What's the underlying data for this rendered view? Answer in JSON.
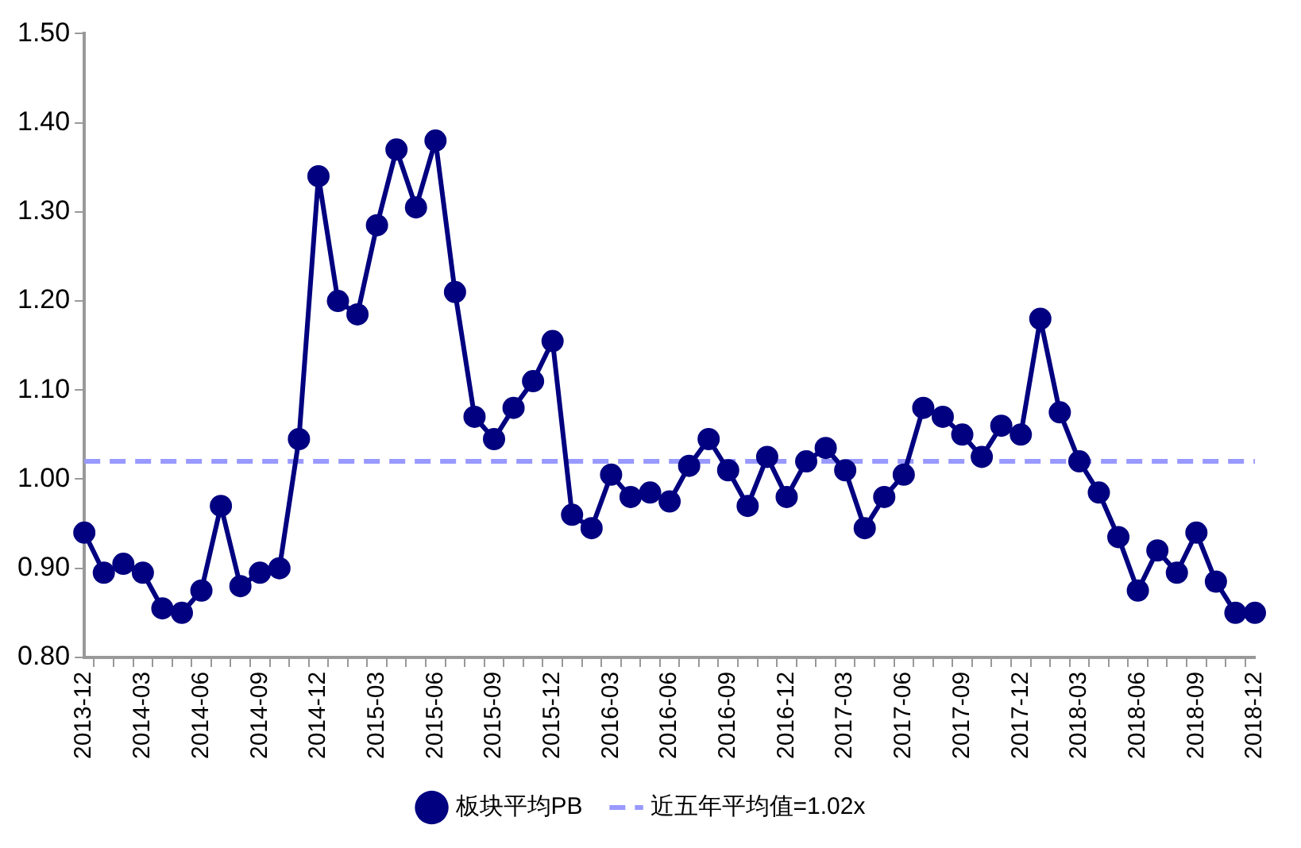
{
  "chart_data": {
    "type": "line",
    "categories": [
      "2013-12",
      null,
      null,
      "2014-03",
      null,
      null,
      "2014-06",
      null,
      null,
      "2014-09",
      null,
      null,
      "2014-12",
      null,
      null,
      "2015-03",
      null,
      null,
      "2015-06",
      null,
      null,
      "2015-09",
      null,
      null,
      "2015-12",
      null,
      null,
      "2016-03",
      null,
      null,
      "2016-06",
      null,
      null,
      "2016-09",
      null,
      null,
      "2016-12",
      null,
      null,
      "2017-03",
      null,
      null,
      "2017-06",
      null,
      null,
      "2017-09",
      null,
      null,
      "2017-12",
      null,
      null,
      "2018-03",
      null,
      null,
      "2018-06",
      null,
      null,
      "2018-09",
      null,
      null,
      "2018-12"
    ],
    "series": [
      {
        "name": "板块平均PB",
        "color": "#000080",
        "values": [
          0.94,
          0.895,
          0.905,
          0.895,
          0.855,
          0.85,
          0.875,
          0.97,
          0.88,
          0.895,
          0.9,
          1.045,
          1.34,
          1.2,
          1.185,
          1.285,
          1.37,
          1.305,
          1.38,
          1.21,
          1.07,
          1.045,
          1.08,
          1.11,
          1.155,
          0.96,
          0.945,
          1.005,
          0.98,
          0.985,
          0.975,
          1.015,
          1.045,
          1.01,
          0.97,
          1.025,
          0.98,
          1.02,
          1.035,
          1.01,
          0.945,
          0.98,
          1.005,
          1.08,
          1.07,
          1.05,
          1.025,
          1.06,
          1.05,
          1.18,
          1.075,
          1.02,
          0.985,
          0.935,
          0.875,
          0.92,
          0.895,
          0.94,
          0.885,
          0.85,
          0.85
        ]
      }
    ],
    "ref_lines": [
      {
        "axis": "y",
        "value": 1.02,
        "label": "近五年平均值=1.02x",
        "color": "#9999ff",
        "line_style": "dashed"
      }
    ],
    "ylim": [
      0.8,
      1.5
    ],
    "yticks": [
      {
        "value": 0.8,
        "label": "0.80"
      },
      {
        "value": 0.9,
        "label": "0.90"
      },
      {
        "value": 1.0,
        "label": "1.00"
      },
      {
        "value": 1.1,
        "label": "1.10"
      },
      {
        "value": 1.2,
        "label": "1.20"
      },
      {
        "value": 1.3,
        "label": "1.30"
      },
      {
        "value": 1.4,
        "label": "1.40"
      },
      {
        "value": 1.5,
        "label": "1.50"
      }
    ],
    "grid": false,
    "legend": "bottom",
    "marker": "circle",
    "line_style": "solid"
  }
}
